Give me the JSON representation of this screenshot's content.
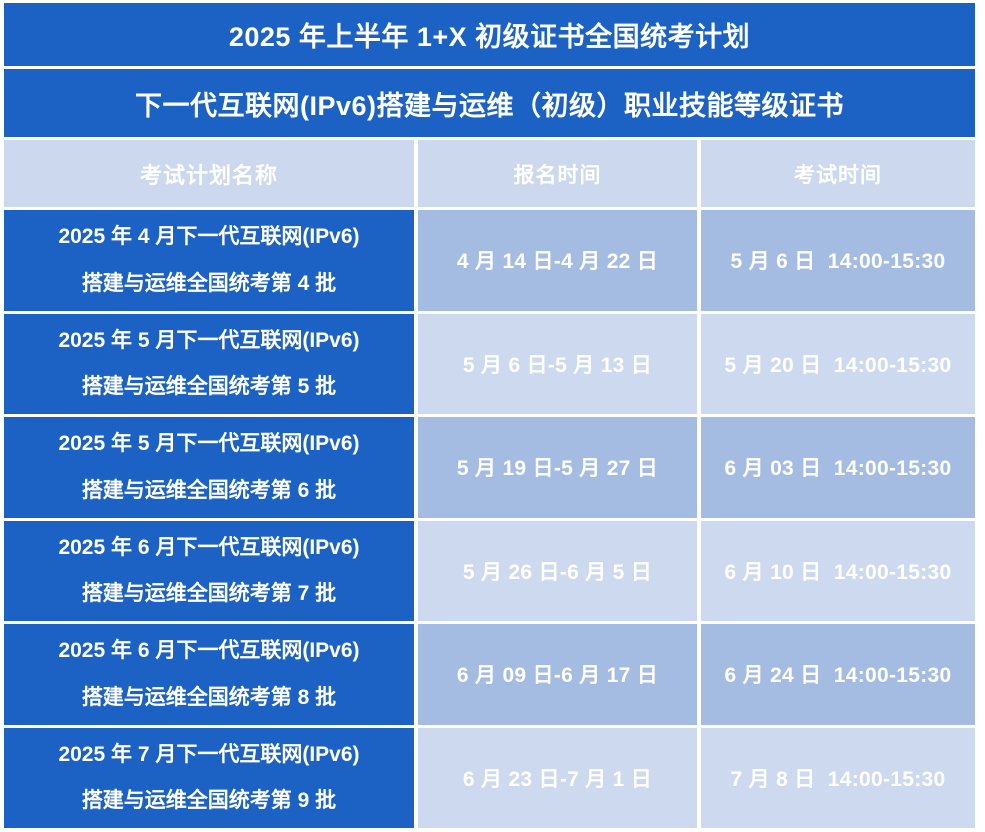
{
  "title": "2025 年上半年 1+X 初级证书全国统考计划",
  "subtitle": "下一代互联网(IPv6)搭建与运维（初级）职业技能等级证书",
  "columns": {
    "plan_name": "考试计划名称",
    "registration_time": "报名时间",
    "exam_time": "考试时间"
  },
  "rows": [
    {
      "name_line1": "2025 年 4 月下一代互联网(IPv6)",
      "name_line2": "搭建与运维全国统考第 4 批",
      "registration": "4 月 14 日-4 月 22 日",
      "exam": "5 月 6 日  14:00-15:30",
      "shade": "medium"
    },
    {
      "name_line1": "2025 年 5 月下一代互联网(IPv6)",
      "name_line2": "搭建与运维全国统考第 5 批",
      "registration": "5 月 6 日-5 月 13 日",
      "exam": "5 月 20 日  14:00-15:30",
      "shade": "light"
    },
    {
      "name_line1": "2025 年 5 月下一代互联网(IPv6)",
      "name_line2": "搭建与运维全国统考第 6 批",
      "registration": "5 月 19 日-5 月 27 日",
      "exam": "6 月 03 日  14:00-15:30",
      "shade": "medium"
    },
    {
      "name_line1": "2025 年 6 月下一代互联网(IPv6)",
      "name_line2": "搭建与运维全国统考第 7 批",
      "registration": "5 月 26 日-6 月 5 日",
      "exam": "6 月 10 日  14:00-15:30",
      "shade": "light"
    },
    {
      "name_line1": "2025 年 6 月下一代互联网(IPv6)",
      "name_line2": "搭建与运维全国统考第 8 批",
      "registration": "6 月 09 日-6 月 17 日",
      "exam": "6 月 24 日  14:00-15:30",
      "shade": "medium"
    },
    {
      "name_line1": "2025 年 7 月下一代互联网(IPv6)",
      "name_line2": "搭建与运维全国统考第 9 批",
      "registration": "6 月 23 日-7 月 1 日",
      "exam": "7 月 8 日  14:00-15:30",
      "shade": "light"
    }
  ],
  "colors": {
    "primary_blue": "#1c61c4",
    "cell_medium_blue": "#a4bce2",
    "cell_light_blue": "#cdd9ee",
    "header_light_blue": "#ccd8ee",
    "text_white": "#ffffff",
    "page_background": "#ffffff"
  }
}
